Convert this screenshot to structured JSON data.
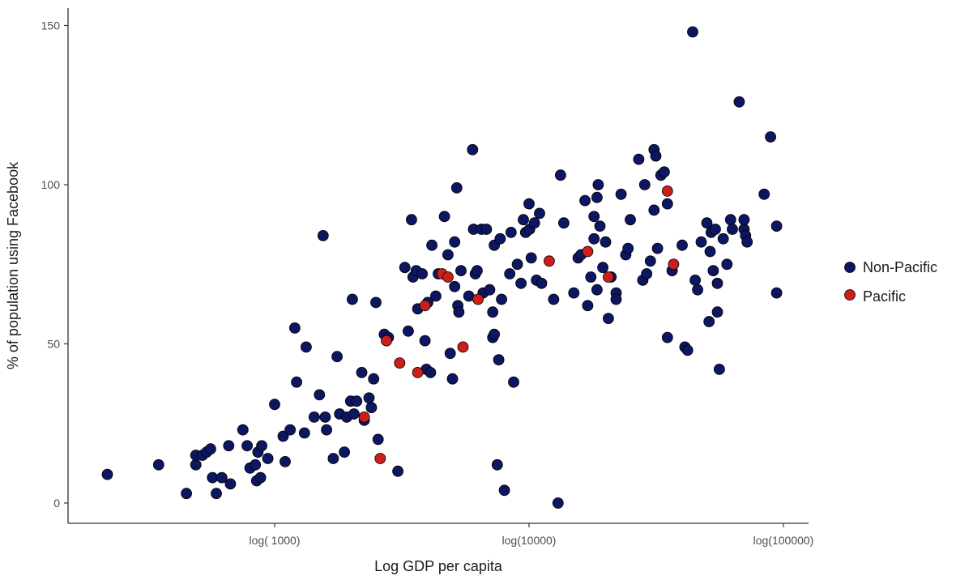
{
  "chart_data": {
    "type": "scatter",
    "xlabel": "Log GDP per capita",
    "ylabel": "% of population using Facebook",
    "x_scale": "log10",
    "xlim": [
      200,
      110000
    ],
    "ylim": [
      -7,
      155
    ],
    "x_ticks": [
      {
        "value": 1000,
        "label": "log( 1000)"
      },
      {
        "value": 10000,
        "label": "log(10000)"
      },
      {
        "value": 100000,
        "label": "log(100000)"
      }
    ],
    "y_ticks": [
      {
        "value": 0,
        "label": "0"
      },
      {
        "value": 50,
        "label": "50"
      },
      {
        "value": 100,
        "label": "100"
      },
      {
        "value": 150,
        "label": "150"
      }
    ],
    "grid": false,
    "legend_position": "right",
    "colors": {
      "Non-Pacific": "#0d1660",
      "Pacific": "#cc1f1a"
    },
    "series": [
      {
        "name": "Non-Pacific",
        "points": [
          [
            220,
            9
          ],
          [
            350,
            12
          ],
          [
            450,
            3
          ],
          [
            490,
            12
          ],
          [
            490,
            15
          ],
          [
            520,
            15
          ],
          [
            540,
            16
          ],
          [
            560,
            17
          ],
          [
            570,
            8
          ],
          [
            590,
            3
          ],
          [
            620,
            8
          ],
          [
            660,
            18
          ],
          [
            670,
            6
          ],
          [
            750,
            23
          ],
          [
            780,
            18
          ],
          [
            800,
            11
          ],
          [
            840,
            12
          ],
          [
            850,
            7
          ],
          [
            860,
            16
          ],
          [
            880,
            8
          ],
          [
            890,
            18
          ],
          [
            940,
            14
          ],
          [
            1000,
            31
          ],
          [
            1080,
            21
          ],
          [
            1100,
            13
          ],
          [
            1150,
            23
          ],
          [
            1200,
            55
          ],
          [
            1220,
            38
          ],
          [
            1310,
            22
          ],
          [
            1330,
            49
          ],
          [
            1430,
            27
          ],
          [
            1500,
            34
          ],
          [
            1550,
            84
          ],
          [
            1580,
            27
          ],
          [
            1600,
            23
          ],
          [
            1700,
            14
          ],
          [
            1760,
            46
          ],
          [
            1800,
            28
          ],
          [
            1880,
            16
          ],
          [
            1920,
            27
          ],
          [
            1990,
            32
          ],
          [
            2020,
            64
          ],
          [
            2050,
            28
          ],
          [
            2100,
            32
          ],
          [
            2200,
            41
          ],
          [
            2250,
            26
          ],
          [
            2350,
            33
          ],
          [
            2400,
            30
          ],
          [
            2450,
            39
          ],
          [
            2500,
            63
          ],
          [
            2550,
            20
          ],
          [
            2700,
            53
          ],
          [
            2800,
            52
          ],
          [
            3050,
            10
          ],
          [
            3250,
            74
          ],
          [
            3350,
            54
          ],
          [
            3450,
            89
          ],
          [
            3500,
            71
          ],
          [
            3600,
            73
          ],
          [
            3650,
            61
          ],
          [
            3800,
            72
          ],
          [
            3900,
            51
          ],
          [
            3950,
            42
          ],
          [
            4000,
            63
          ],
          [
            4100,
            41
          ],
          [
            4150,
            81
          ],
          [
            4300,
            65
          ],
          [
            4400,
            72
          ],
          [
            4650,
            90
          ],
          [
            4800,
            78
          ],
          [
            4900,
            47
          ],
          [
            5000,
            39
          ],
          [
            5100,
            68
          ],
          [
            5100,
            82
          ],
          [
            5200,
            99
          ],
          [
            5250,
            62
          ],
          [
            5300,
            60
          ],
          [
            5400,
            73
          ],
          [
            5800,
            65
          ],
          [
            6000,
            111
          ],
          [
            6050,
            86
          ],
          [
            6150,
            72
          ],
          [
            6250,
            73
          ],
          [
            6500,
            86
          ],
          [
            6600,
            66
          ],
          [
            6800,
            86
          ],
          [
            7000,
            67
          ],
          [
            7200,
            52
          ],
          [
            7200,
            60
          ],
          [
            7300,
            53
          ],
          [
            7300,
            81
          ],
          [
            7500,
            12
          ],
          [
            7600,
            45
          ],
          [
            7700,
            83
          ],
          [
            7800,
            64
          ],
          [
            8000,
            4
          ],
          [
            8400,
            72
          ],
          [
            8500,
            85
          ],
          [
            8700,
            38
          ],
          [
            9000,
            75
          ],
          [
            9300,
            69
          ],
          [
            9500,
            89
          ],
          [
            9700,
            85
          ],
          [
            10000,
            94
          ],
          [
            10050,
            86
          ],
          [
            10200,
            77
          ],
          [
            10500,
            88
          ],
          [
            10700,
            70
          ],
          [
            11000,
            91
          ],
          [
            11200,
            69
          ],
          [
            12500,
            64
          ],
          [
            13000,
            0
          ],
          [
            13300,
            103
          ],
          [
            13700,
            88
          ],
          [
            15000,
            66
          ],
          [
            15600,
            77
          ],
          [
            16000,
            78
          ],
          [
            16600,
            95
          ],
          [
            17000,
            62
          ],
          [
            17500,
            71
          ],
          [
            18000,
            83
          ],
          [
            18000,
            90
          ],
          [
            18500,
            96
          ],
          [
            18500,
            67
          ],
          [
            18700,
            100
          ],
          [
            19000,
            87
          ],
          [
            19500,
            74
          ],
          [
            20000,
            82
          ],
          [
            20500,
            58
          ],
          [
            21000,
            71
          ],
          [
            22000,
            66
          ],
          [
            22000,
            64
          ],
          [
            23000,
            97
          ],
          [
            24000,
            78
          ],
          [
            24500,
            80
          ],
          [
            25000,
            89
          ],
          [
            27000,
            108
          ],
          [
            28000,
            70
          ],
          [
            28500,
            100
          ],
          [
            29000,
            72
          ],
          [
            30000,
            76
          ],
          [
            31000,
            111
          ],
          [
            31000,
            92
          ],
          [
            31500,
            109
          ],
          [
            32000,
            80
          ],
          [
            33000,
            103
          ],
          [
            34000,
            104
          ],
          [
            35000,
            52
          ],
          [
            35000,
            94
          ],
          [
            36500,
            73
          ],
          [
            40000,
            81
          ],
          [
            41000,
            49
          ],
          [
            42000,
            48
          ],
          [
            44000,
            148
          ],
          [
            45000,
            70
          ],
          [
            46000,
            67
          ],
          [
            47500,
            82
          ],
          [
            50000,
            88
          ],
          [
            51000,
            57
          ],
          [
            51500,
            79
          ],
          [
            52000,
            85
          ],
          [
            53000,
            73
          ],
          [
            54000,
            86
          ],
          [
            55000,
            60
          ],
          [
            55000,
            69
          ],
          [
            56000,
            42
          ],
          [
            58000,
            83
          ],
          [
            60000,
            75
          ],
          [
            62000,
            89
          ],
          [
            63000,
            86
          ],
          [
            67000,
            126
          ],
          [
            70000,
            86
          ],
          [
            70000,
            89
          ],
          [
            71000,
            84
          ],
          [
            72000,
            82
          ],
          [
            84000,
            97
          ],
          [
            89000,
            115
          ],
          [
            94000,
            66
          ],
          [
            94000,
            87
          ]
        ]
      },
      {
        "name": "Pacific",
        "points": [
          [
            2250,
            27
          ],
          [
            2600,
            14
          ],
          [
            2750,
            51
          ],
          [
            3100,
            44
          ],
          [
            3650,
            41
          ],
          [
            3900,
            62
          ],
          [
            4550,
            72
          ],
          [
            4800,
            71
          ],
          [
            5500,
            49
          ],
          [
            6300,
            64
          ],
          [
            12000,
            76
          ],
          [
            17000,
            79
          ],
          [
            20500,
            71
          ],
          [
            35000,
            98
          ],
          [
            37000,
            75
          ]
        ]
      }
    ]
  }
}
